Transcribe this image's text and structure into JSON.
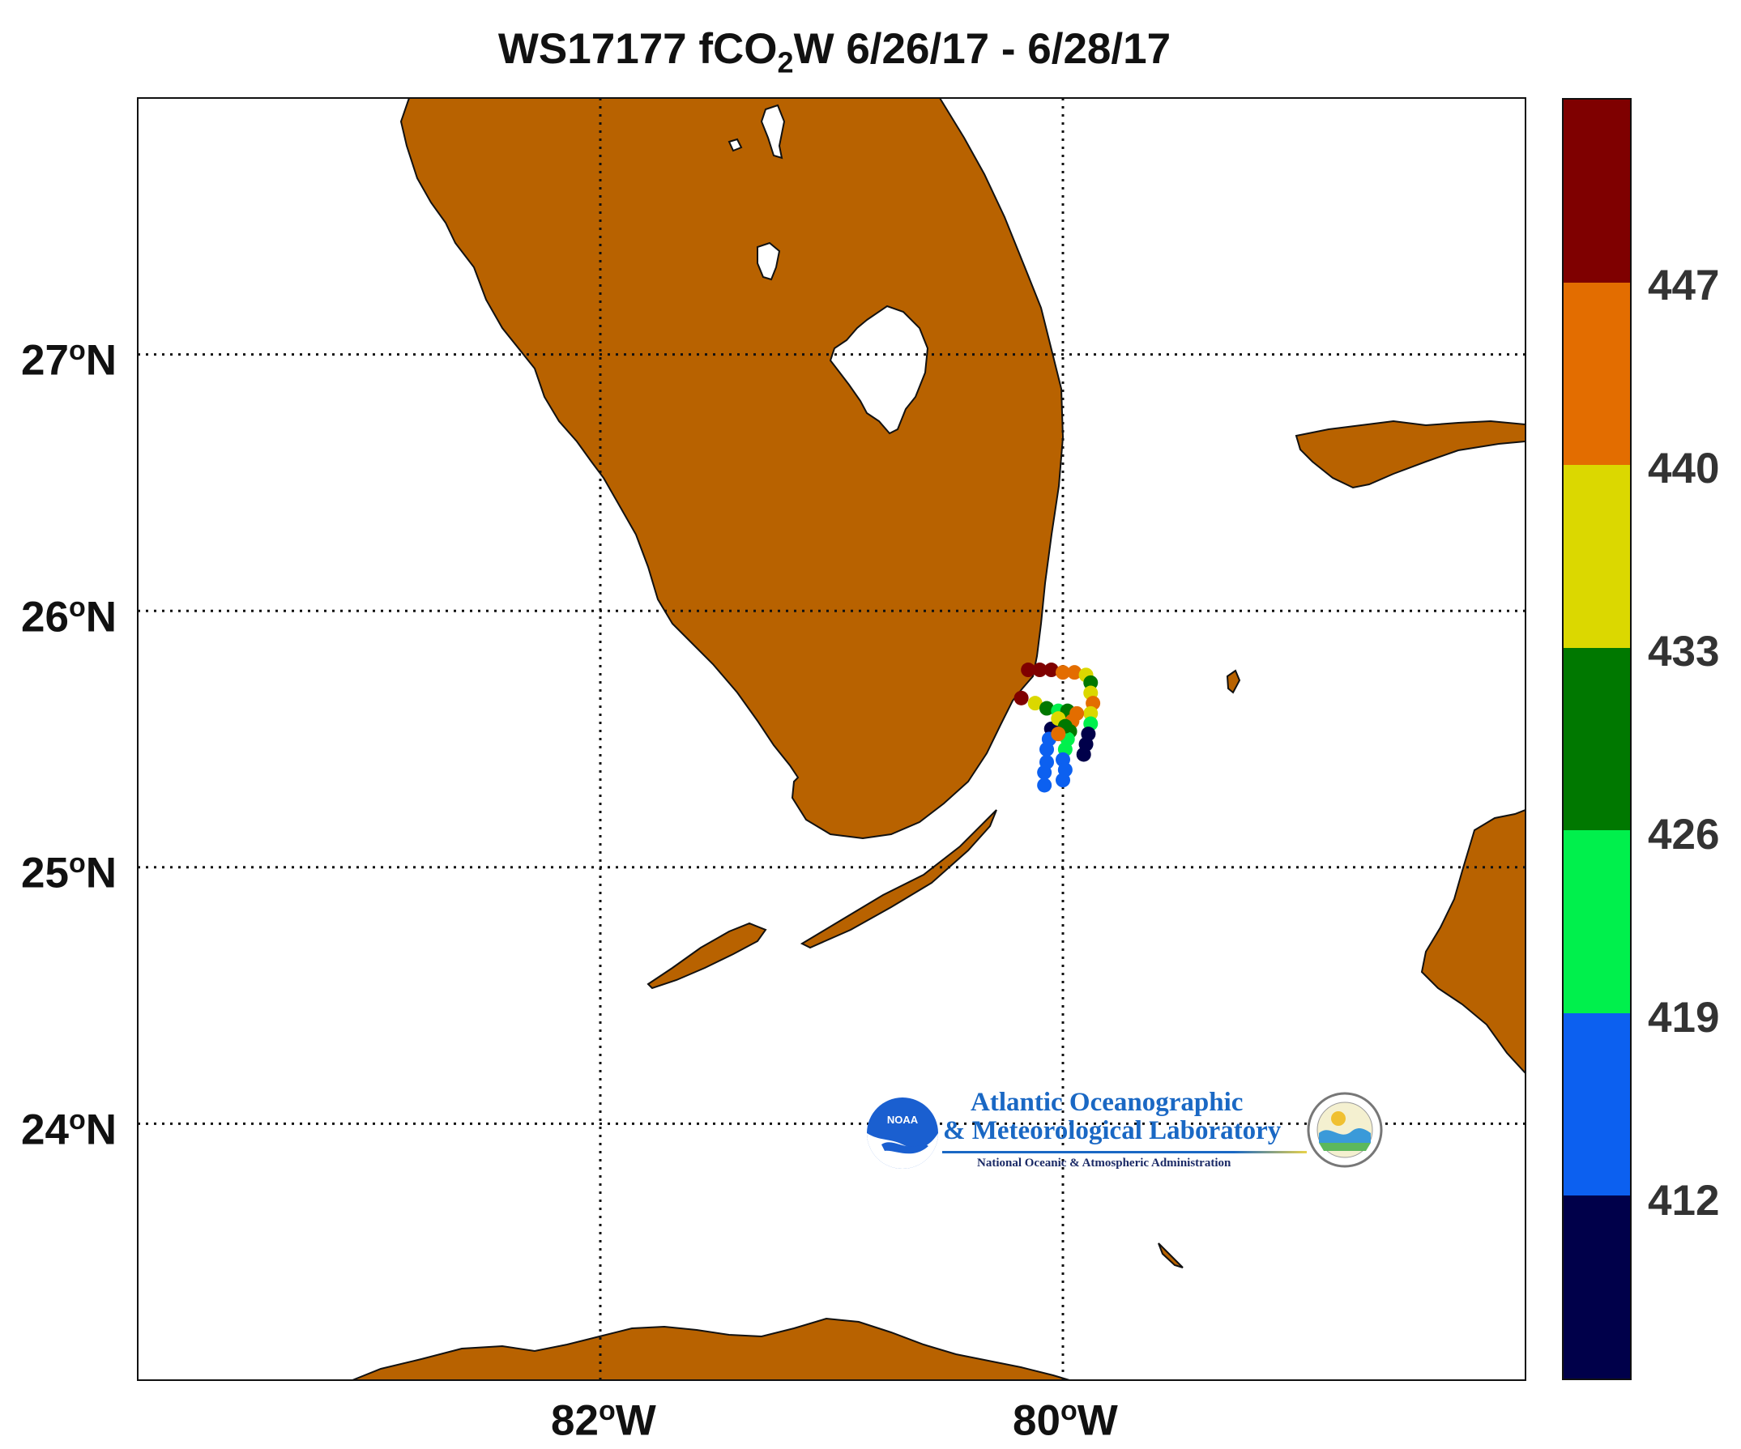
{
  "title": {
    "prefix": "WS17177 fCO",
    "sub": "2",
    "suffix": "W 6/26/17 - 6/28/17"
  },
  "map": {
    "lon_range": [
      -84.0,
      -78.0
    ],
    "lat_range": [
      23.0,
      28.0
    ],
    "grid": "dotted",
    "land_color": "#b86200",
    "lat_labels": [
      {
        "lat": 27,
        "deg": "27",
        "sym": "o",
        "hem": "N"
      },
      {
        "lat": 26,
        "deg": "26",
        "sym": "o",
        "hem": "N"
      },
      {
        "lat": 25,
        "deg": "25",
        "sym": "o",
        "hem": "N"
      },
      {
        "lat": 24,
        "deg": "24",
        "sym": "o",
        "hem": "N"
      }
    ],
    "lon_labels": [
      {
        "lon": -82,
        "deg": "82",
        "sym": "o",
        "hem": "W"
      },
      {
        "lon": -80,
        "deg": "80",
        "sym": "o",
        "hem": "W"
      }
    ]
  },
  "colorbar": {
    "min": 405,
    "max": 454,
    "segments": [
      {
        "from": 447,
        "to": 454,
        "color": "#7f0000"
      },
      {
        "from": 440,
        "to": 447,
        "color": "#e36d00"
      },
      {
        "from": 433,
        "to": 440,
        "color": "#dbd800"
      },
      {
        "from": 426,
        "to": 433,
        "color": "#007800"
      },
      {
        "from": 419,
        "to": 426,
        "color": "#00f04c"
      },
      {
        "from": 412,
        "to": 419,
        "color": "#0c60f0"
      },
      {
        "from": 405,
        "to": 412,
        "color": "#00004a"
      }
    ],
    "ticks": [
      "447",
      "440",
      "433",
      "426",
      "419",
      "412"
    ]
  },
  "track_points": [
    {
      "lon": -80.15,
      "lat": 25.77,
      "v": 450
    },
    {
      "lon": -80.1,
      "lat": 25.77,
      "v": 451
    },
    {
      "lon": -80.05,
      "lat": 25.77,
      "v": 448
    },
    {
      "lon": -80.0,
      "lat": 25.76,
      "v": 445
    },
    {
      "lon": -79.95,
      "lat": 25.76,
      "v": 441
    },
    {
      "lon": -79.9,
      "lat": 25.75,
      "v": 436
    },
    {
      "lon": -79.88,
      "lat": 25.72,
      "v": 430
    },
    {
      "lon": -79.88,
      "lat": 25.68,
      "v": 436
    },
    {
      "lon": -79.87,
      "lat": 25.64,
      "v": 443
    },
    {
      "lon": -79.88,
      "lat": 25.6,
      "v": 438
    },
    {
      "lon": -79.88,
      "lat": 25.56,
      "v": 421
    },
    {
      "lon": -79.89,
      "lat": 25.52,
      "v": 411
    },
    {
      "lon": -79.9,
      "lat": 25.48,
      "v": 410
    },
    {
      "lon": -79.91,
      "lat": 25.44,
      "v": 409
    },
    {
      "lon": -80.18,
      "lat": 25.66,
      "v": 452
    },
    {
      "lon": -80.12,
      "lat": 25.64,
      "v": 437
    },
    {
      "lon": -80.07,
      "lat": 25.62,
      "v": 428
    },
    {
      "lon": -80.02,
      "lat": 25.61,
      "v": 422
    },
    {
      "lon": -79.98,
      "lat": 25.61,
      "v": 431
    },
    {
      "lon": -79.94,
      "lat": 25.6,
      "v": 441
    },
    {
      "lon": -79.96,
      "lat": 25.57,
      "v": 444
    },
    {
      "lon": -79.97,
      "lat": 25.53,
      "v": 426
    },
    {
      "lon": -79.98,
      "lat": 25.5,
      "v": 420
    },
    {
      "lon": -79.99,
      "lat": 25.46,
      "v": 423
    },
    {
      "lon": -80.0,
      "lat": 25.42,
      "v": 417
    },
    {
      "lon": -79.99,
      "lat": 25.38,
      "v": 416
    },
    {
      "lon": -80.0,
      "lat": 25.34,
      "v": 415
    },
    {
      "lon": -80.05,
      "lat": 25.54,
      "v": 410
    },
    {
      "lon": -80.06,
      "lat": 25.5,
      "v": 412
    },
    {
      "lon": -80.07,
      "lat": 25.46,
      "v": 415
    },
    {
      "lon": -80.07,
      "lat": 25.41,
      "v": 418
    },
    {
      "lon": -80.08,
      "lat": 25.37,
      "v": 417
    },
    {
      "lon": -80.08,
      "lat": 25.32,
      "v": 416
    },
    {
      "lon": -80.02,
      "lat": 25.58,
      "v": 438
    },
    {
      "lon": -79.99,
      "lat": 25.55,
      "v": 432
    },
    {
      "lon": -80.02,
      "lat": 25.52,
      "v": 440
    }
  ],
  "logo": {
    "name_line1": "Atlantic Oceanographic",
    "name_line2": "& Meteorological Laboratory",
    "agency": "National Oceanic & Atmospheric Administration",
    "badge_text": "NOAA"
  }
}
